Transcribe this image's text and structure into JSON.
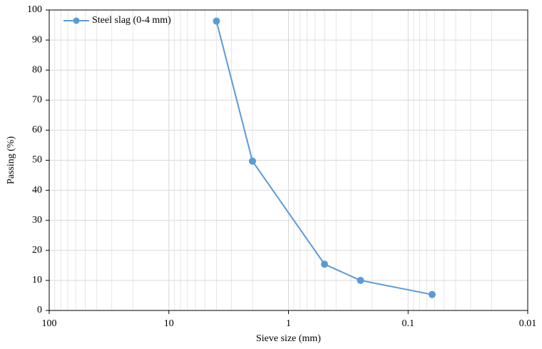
{
  "chart_data": {
    "type": "line",
    "x_label": "Sieve size (mm)",
    "y_label": "Passing (%)",
    "x": [
      4,
      2,
      0.5,
      0.25,
      0.063
    ],
    "series": [
      {
        "name": "Steel slag (0-4 mm)",
        "color": "#5b9bd5",
        "values": [
          96.3,
          49.7,
          15.4,
          10.0,
          5.3
        ]
      }
    ],
    "xscale": "log",
    "xlim": [
      100,
      0.01
    ],
    "xticks": [
      100,
      10,
      1,
      0.1,
      0.01
    ],
    "ylim": [
      0,
      100
    ],
    "yticks": [
      0,
      10,
      20,
      30,
      40,
      50,
      60,
      70,
      80,
      90,
      100
    ],
    "grid": true,
    "minor_grid": true,
    "legend": "upper left"
  }
}
